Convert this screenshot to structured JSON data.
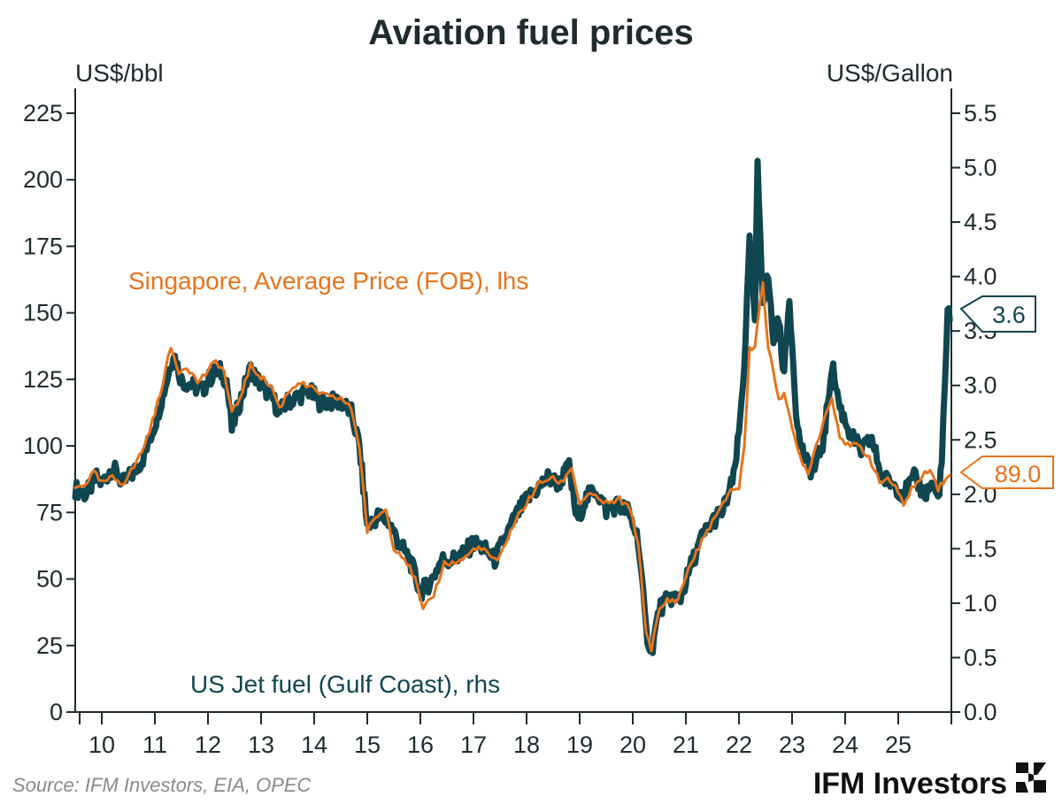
{
  "chart_data": {
    "type": "line",
    "title": "Aviation fuel prices",
    "ylabel_left": "US$/bbl",
    "ylabel_right": "US$/Gallon",
    "ylim_left": [
      0,
      225
    ],
    "ylim_right": [
      0,
      5.5
    ],
    "yticks_left": [
      "0",
      "25",
      "50",
      "75",
      "100",
      "125",
      "150",
      "175",
      "200",
      "225"
    ],
    "yticks_right": [
      "0.0",
      "0.5",
      "1.0",
      "1.5",
      "2.0",
      "2.5",
      "3.0",
      "3.5",
      "4.0",
      "4.5",
      "5.0",
      "5.5"
    ],
    "xlim": [
      2009.5,
      2026.0
    ],
    "x_tick_labels": [
      "10",
      "11",
      "12",
      "13",
      "14",
      "15",
      "16",
      "17",
      "18",
      "19",
      "20",
      "21",
      "22",
      "23",
      "24",
      "25"
    ],
    "grid": false,
    "series": [
      {
        "name": "US Jet fuel (Gulf Coast), rhs",
        "axis": "right",
        "color": "#0f4650",
        "last_value_label": "3.6",
        "points": [
          [
            2009.5,
            2.05
          ],
          [
            2009.7,
            2.0
          ],
          [
            2009.9,
            2.15
          ],
          [
            2010.0,
            2.1
          ],
          [
            2010.2,
            2.25
          ],
          [
            2010.4,
            2.1
          ],
          [
            2010.6,
            2.2
          ],
          [
            2010.8,
            2.35
          ],
          [
            2011.0,
            2.65
          ],
          [
            2011.2,
            3.0
          ],
          [
            2011.35,
            3.3
          ],
          [
            2011.5,
            3.05
          ],
          [
            2011.7,
            3.0
          ],
          [
            2011.9,
            2.95
          ],
          [
            2012.0,
            3.05
          ],
          [
            2012.2,
            3.15
          ],
          [
            2012.35,
            3.05
          ],
          [
            2012.45,
            2.6
          ],
          [
            2012.6,
            2.85
          ],
          [
            2012.8,
            3.15
          ],
          [
            2013.0,
            3.0
          ],
          [
            2013.2,
            2.9
          ],
          [
            2013.35,
            2.75
          ],
          [
            2013.5,
            2.85
          ],
          [
            2013.7,
            2.9
          ],
          [
            2013.9,
            2.95
          ],
          [
            2014.1,
            2.85
          ],
          [
            2014.3,
            2.85
          ],
          [
            2014.5,
            2.85
          ],
          [
            2014.7,
            2.75
          ],
          [
            2014.85,
            2.45
          ],
          [
            2015.0,
            1.7
          ],
          [
            2015.2,
            1.8
          ],
          [
            2015.4,
            1.75
          ],
          [
            2015.6,
            1.55
          ],
          [
            2015.8,
            1.4
          ],
          [
            2016.0,
            1.1
          ],
          [
            2016.2,
            1.2
          ],
          [
            2016.4,
            1.4
          ],
          [
            2016.6,
            1.4
          ],
          [
            2016.8,
            1.45
          ],
          [
            2017.0,
            1.55
          ],
          [
            2017.2,
            1.5
          ],
          [
            2017.4,
            1.4
          ],
          [
            2017.6,
            1.6
          ],
          [
            2017.8,
            1.8
          ],
          [
            2018.0,
            1.95
          ],
          [
            2018.2,
            2.05
          ],
          [
            2018.4,
            2.15
          ],
          [
            2018.6,
            2.1
          ],
          [
            2018.8,
            2.25
          ],
          [
            2018.95,
            1.75
          ],
          [
            2019.1,
            1.95
          ],
          [
            2019.3,
            2.05
          ],
          [
            2019.5,
            1.85
          ],
          [
            2019.7,
            1.9
          ],
          [
            2019.9,
            1.85
          ],
          [
            2020.1,
            1.6
          ],
          [
            2020.25,
            0.75
          ],
          [
            2020.35,
            0.55
          ],
          [
            2020.5,
            0.95
          ],
          [
            2020.7,
            1.05
          ],
          [
            2020.9,
            1.05
          ],
          [
            2021.1,
            1.35
          ],
          [
            2021.3,
            1.6
          ],
          [
            2021.5,
            1.75
          ],
          [
            2021.7,
            1.85
          ],
          [
            2021.9,
            2.15
          ],
          [
            2022.0,
            2.55
          ],
          [
            2022.1,
            3.2
          ],
          [
            2022.2,
            4.3
          ],
          [
            2022.3,
            3.6
          ],
          [
            2022.35,
            5.0
          ],
          [
            2022.45,
            3.8
          ],
          [
            2022.55,
            4.0
          ],
          [
            2022.65,
            3.4
          ],
          [
            2022.75,
            3.6
          ],
          [
            2022.85,
            3.1
          ],
          [
            2022.95,
            3.8
          ],
          [
            2023.1,
            2.6
          ],
          [
            2023.25,
            2.3
          ],
          [
            2023.4,
            2.2
          ],
          [
            2023.6,
            2.5
          ],
          [
            2023.75,
            3.2
          ],
          [
            2023.9,
            2.8
          ],
          [
            2024.1,
            2.55
          ],
          [
            2024.3,
            2.4
          ],
          [
            2024.5,
            2.5
          ],
          [
            2024.7,
            2.15
          ],
          [
            2024.9,
            2.1
          ],
          [
            2025.1,
            2.0
          ],
          [
            2025.3,
            2.15
          ],
          [
            2025.5,
            2.0
          ],
          [
            2025.65,
            2.1
          ],
          [
            2025.75,
            1.95
          ],
          [
            2025.82,
            2.3
          ],
          [
            2025.88,
            3.0
          ],
          [
            2025.93,
            3.7
          ],
          [
            2025.97,
            3.6
          ]
        ]
      },
      {
        "name": "Singapore, Average Price (FOB), lhs",
        "axis": "left",
        "color": "#e8731a",
        "last_value_label": "89.0",
        "points": [
          [
            2009.5,
            84
          ],
          [
            2009.7,
            86
          ],
          [
            2009.85,
            90
          ],
          [
            2010.0,
            86
          ],
          [
            2010.2,
            88
          ],
          [
            2010.4,
            86
          ],
          [
            2010.6,
            92
          ],
          [
            2010.8,
            100
          ],
          [
            2011.0,
            112
          ],
          [
            2011.15,
            124
          ],
          [
            2011.3,
            137
          ],
          [
            2011.45,
            128
          ],
          [
            2011.6,
            130
          ],
          [
            2011.8,
            124
          ],
          [
            2012.0,
            128
          ],
          [
            2012.15,
            132
          ],
          [
            2012.3,
            128
          ],
          [
            2012.45,
            112
          ],
          [
            2012.6,
            118
          ],
          [
            2012.8,
            130
          ],
          [
            2013.0,
            126
          ],
          [
            2013.2,
            122
          ],
          [
            2013.35,
            114
          ],
          [
            2013.5,
            120
          ],
          [
            2013.7,
            124
          ],
          [
            2013.9,
            122
          ],
          [
            2014.1,
            120
          ],
          [
            2014.3,
            118
          ],
          [
            2014.5,
            118
          ],
          [
            2014.7,
            114
          ],
          [
            2014.85,
            100
          ],
          [
            2015.0,
            68
          ],
          [
            2015.2,
            74
          ],
          [
            2015.35,
            76
          ],
          [
            2015.5,
            62
          ],
          [
            2015.7,
            58
          ],
          [
            2015.9,
            50
          ],
          [
            2016.05,
            38
          ],
          [
            2016.25,
            44
          ],
          [
            2016.45,
            56
          ],
          [
            2016.65,
            56
          ],
          [
            2016.85,
            58
          ],
          [
            2017.05,
            62
          ],
          [
            2017.25,
            60
          ],
          [
            2017.45,
            56
          ],
          [
            2017.65,
            66
          ],
          [
            2017.85,
            74
          ],
          [
            2018.05,
            80
          ],
          [
            2018.25,
            86
          ],
          [
            2018.45,
            88
          ],
          [
            2018.65,
            86
          ],
          [
            2018.85,
            92
          ],
          [
            2019.0,
            78
          ],
          [
            2019.15,
            82
          ],
          [
            2019.35,
            80
          ],
          [
            2019.55,
            78
          ],
          [
            2019.75,
            80
          ],
          [
            2019.95,
            76
          ],
          [
            2020.1,
            64
          ],
          [
            2020.25,
            30
          ],
          [
            2020.35,
            24
          ],
          [
            2020.5,
            38
          ],
          [
            2020.65,
            42
          ],
          [
            2020.85,
            42
          ],
          [
            2021.05,
            54
          ],
          [
            2021.25,
            62
          ],
          [
            2021.45,
            70
          ],
          [
            2021.65,
            76
          ],
          [
            2021.85,
            84
          ],
          [
            2022.0,
            84
          ],
          [
            2022.1,
            100
          ],
          [
            2022.2,
            136
          ],
          [
            2022.3,
            138
          ],
          [
            2022.45,
            162
          ],
          [
            2022.55,
            136
          ],
          [
            2022.65,
            128
          ],
          [
            2022.75,
            118
          ],
          [
            2022.85,
            120
          ],
          [
            2023.0,
            106
          ],
          [
            2023.15,
            96
          ],
          [
            2023.3,
            90
          ],
          [
            2023.45,
            100
          ],
          [
            2023.6,
            110
          ],
          [
            2023.75,
            118
          ],
          [
            2023.9,
            104
          ],
          [
            2024.05,
            100
          ],
          [
            2024.25,
            100
          ],
          [
            2024.45,
            96
          ],
          [
            2024.65,
            86
          ],
          [
            2024.8,
            88
          ],
          [
            2024.95,
            84
          ],
          [
            2025.1,
            78
          ],
          [
            2025.25,
            84
          ],
          [
            2025.45,
            88
          ],
          [
            2025.6,
            92
          ],
          [
            2025.75,
            84
          ],
          [
            2025.9,
            88
          ],
          [
            2025.97,
            89
          ]
        ]
      }
    ],
    "annotations": {
      "right_callout": "3.6",
      "left_callout": "89.0"
    }
  },
  "footer": {
    "source": "Source: IFM Investors, EIA, OPEC",
    "brand": "IFM Investors"
  },
  "colors": {
    "text": "#1e2b2f",
    "us_jet": "#0f4650",
    "singapore": "#e8731a",
    "source": "#8a8a8a"
  }
}
